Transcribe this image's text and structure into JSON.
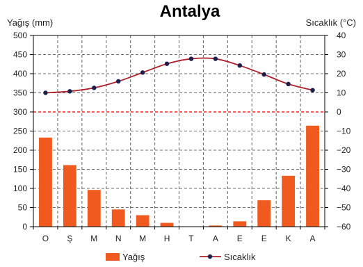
{
  "chart_data": {
    "type": "bar",
    "title": "Antalya",
    "ylabel_left": "Yağış (mm)",
    "ylabel_right": "Sıcaklık (°C)",
    "categories": [
      "O",
      "Ş",
      "M",
      "N",
      "M",
      "H",
      "T",
      "A",
      "E",
      "E",
      "K",
      "A"
    ],
    "ylim_left": [
      0,
      500
    ],
    "yticks_left": [
      0,
      50,
      100,
      150,
      200,
      250,
      300,
      350,
      400,
      450,
      500
    ],
    "ylim_right": [
      -60,
      40
    ],
    "yticks_right": [
      "−60",
      "−50",
      "−40",
      "−30",
      "−20",
      "−10",
      "0",
      "10",
      "20",
      "30",
      "40"
    ],
    "yticks_right_values": [
      -60,
      -50,
      -40,
      -30,
      -20,
      -10,
      0,
      10,
      20,
      30,
      40
    ],
    "zero_reference_line": 0,
    "grid": true,
    "legend_position": "bottom",
    "series": [
      {
        "name": "Yağış",
        "kind": "bar",
        "axis": "left",
        "color": "#f05a1e",
        "values": [
          233,
          161,
          96,
          45,
          30,
          10,
          0,
          3,
          14,
          69,
          133,
          264
        ]
      },
      {
        "name": "Sıcaklık",
        "kind": "line",
        "axis": "right",
        "color": "#b0202a",
        "marker_color": "#1a1f4d",
        "values": [
          10,
          10.8,
          12.6,
          16,
          20.6,
          25.2,
          27.8,
          27.8,
          24.3,
          19.6,
          14.6,
          11.4
        ]
      }
    ]
  }
}
